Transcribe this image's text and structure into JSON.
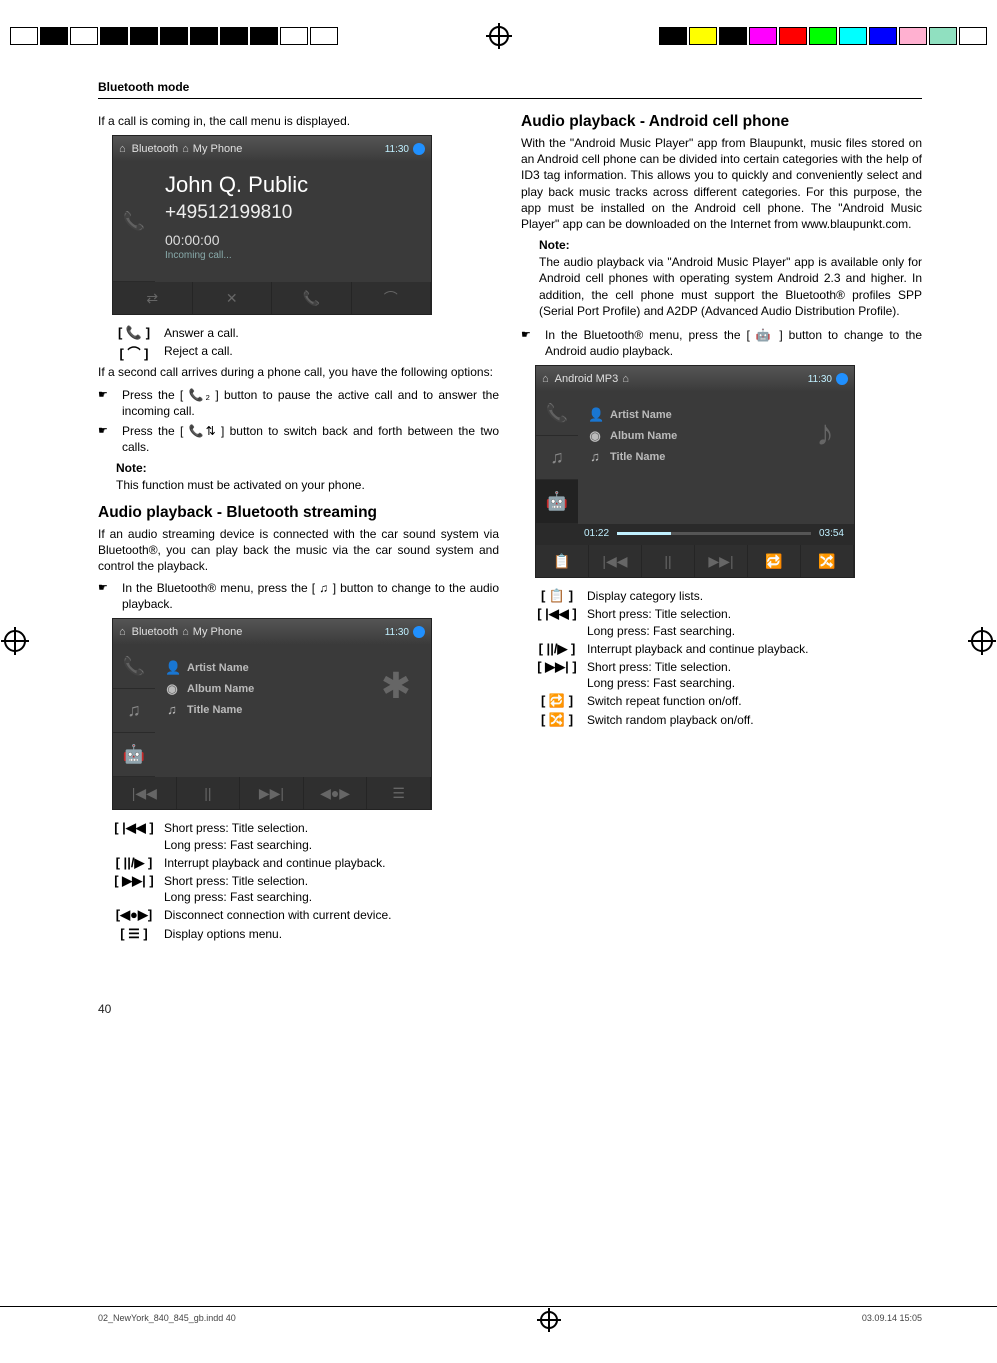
{
  "header": "Bluetooth mode",
  "page_number": "40",
  "footer_left": "02_NewYork_840_845_gb.indd   40",
  "footer_right": "03.09.14   15:05",
  "l": {
    "p1": "If a call is coming in, the call menu is displayed.",
    "shot1": {
      "tab": "Bluetooth",
      "tab2": "My Phone",
      "time": "11:30",
      "name": "John Q. Public",
      "num": "+49512199810",
      "dur": "00:00:00",
      "stat": "Incoming call..."
    },
    "i1": {
      "icon": "[  📞  ]",
      "text": "Answer a call."
    },
    "i2": {
      "icon": "[  ⌒  ]",
      "text": "Reject a call."
    },
    "p2": "If a second call arrives during a phone call, you have the following options:",
    "b1": "Press the [ 📞₂ ] button to pause the active call and to answer the incoming call.",
    "b2": "Press the [ 📞⇅ ] button to switch back and forth between the two calls.",
    "note_h": "Note:",
    "note_b": "This function must be activated on your phone.",
    "h2": "Audio playback - Bluetooth streaming",
    "p3": "If an audio streaming device is connected with the car sound system via Bluetooth®, you can play back the music via the car sound system and control the playback.",
    "b3": "In the Bluetooth® menu, press the [ ♫ ] button to change to the audio playback.",
    "shot2": {
      "tab": "Bluetooth",
      "tab2": "My Phone",
      "time": "11:30",
      "artist": "Artist Name",
      "album": "Album Name",
      "title": "Title Name"
    },
    "c1": {
      "icon": "[ |◀◀ ]",
      "t1": "Short press: Title selection.",
      "t2": "Long press: Fast searching."
    },
    "c2": {
      "icon": "[ ||/▶ ]",
      "t1": "Interrupt playback and continue playback."
    },
    "c3": {
      "icon": "[ ▶▶| ]",
      "t1": "Short press: Title selection.",
      "t2": "Long press: Fast searching."
    },
    "c4": {
      "icon": "[◀●▶]",
      "t1": "Disconnect connection with current device."
    },
    "c5": {
      "icon": "[  ☰  ]",
      "t1": "Display options menu."
    }
  },
  "r": {
    "h2": "Audio playback - Android cell phone",
    "p1": "With the \"Android Music Player\" app from Blaupunkt, music files stored on an Android cell phone can be divided into certain categories with the help of ID3 tag information. This allows you to quickly and conveniently select and play back music tracks across different categories. For this purpose, the app must be installed on the Android cell phone. The \"Android Music Player\" app can be downloaded on the Internet from www.blaupunkt.com.",
    "note_h": "Note:",
    "note_b": "The audio playback via \"Android Music Player\" app is available only for Android cell phones with operating system Android 2.3 and higher. In addition, the cell phone must support the Bluetooth® profiles SPP (Serial Port Profile) and A2DP (Advanced Audio Distribution Profile).",
    "b1": "In the Bluetooth® menu, press the [ 🤖 ] button to change to the Android audio playback.",
    "shot": {
      "tab": "Android MP3",
      "time": "11:30",
      "artist": "Artist Name",
      "album": "Album Name",
      "title": "Title Name",
      "t1": "01:22",
      "t2": "03:54"
    },
    "c1": {
      "icon": "[  📋  ]",
      "t1": "Display category lists."
    },
    "c2": {
      "icon": "[ |◀◀ ]",
      "t1": "Short press: Title selection.",
      "t2": "Long press: Fast searching."
    },
    "c3": {
      "icon": "[ ||/▶ ]",
      "t1": "Interrupt playback and continue playback."
    },
    "c4": {
      "icon": "[ ▶▶| ]",
      "t1": "Short press: Title selection.",
      "t2": "Long press: Fast searching."
    },
    "c5": {
      "icon": "[  🔁  ]",
      "t1": "Switch repeat function on/off."
    },
    "c6": {
      "icon": "[  🔀  ]",
      "t1": "Switch random playback on/off."
    }
  }
}
